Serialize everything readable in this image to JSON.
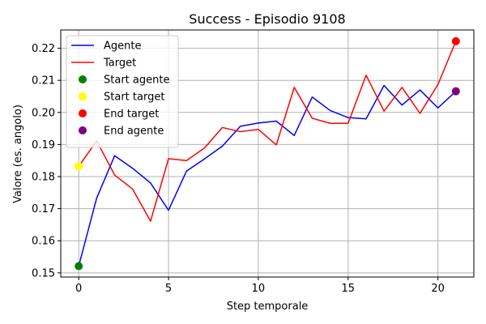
{
  "chart_data": {
    "type": "line",
    "title": "Success - Episodio 9108",
    "xlabel": "Step temporale",
    "ylabel": "Valore (es. angolo)",
    "xlim": [
      -1,
      22
    ],
    "ylim": [
      0.1487,
      0.2257
    ],
    "xticks": [
      0,
      5,
      10,
      15,
      20
    ],
    "yticks": [
      0.15,
      0.16,
      0.17,
      0.18,
      0.19,
      0.2,
      0.21,
      0.22
    ],
    "ytick_labels": [
      "0.15",
      "0.16",
      "0.17",
      "0.18",
      "0.19",
      "0.20",
      "0.21",
      "0.22"
    ],
    "grid": true,
    "legend_position": "top-left",
    "x": [
      0,
      1,
      2,
      3,
      4,
      5,
      6,
      7,
      8,
      9,
      10,
      11,
      12,
      13,
      14,
      15,
      16,
      17,
      18,
      19,
      20,
      21
    ],
    "series": [
      {
        "name": "Agente",
        "color": "#0000ff",
        "values": [
          0.1521,
          0.1733,
          0.1865,
          0.1826,
          0.178,
          0.1695,
          0.1817,
          0.1855,
          0.1895,
          0.1957,
          0.1967,
          0.1973,
          0.1928,
          0.2048,
          0.2006,
          0.1984,
          0.198,
          0.2084,
          0.2023,
          0.207,
          0.2014,
          0.2066
        ]
      },
      {
        "name": "Target",
        "color": "#ff0000",
        "values": [
          0.1832,
          0.1911,
          0.1805,
          0.1761,
          0.1661,
          0.1856,
          0.185,
          0.1889,
          0.1953,
          0.194,
          0.1947,
          0.1899,
          0.2078,
          0.1982,
          0.1966,
          0.1966,
          0.2116,
          0.2004,
          0.2078,
          0.1997,
          0.2087,
          0.2222
        ]
      }
    ],
    "markers": [
      {
        "name": "Start agente",
        "color": "#008000",
        "x": 0,
        "y": 0.1521
      },
      {
        "name": "Start target",
        "color": "#ffff00",
        "x": 0,
        "y": 0.1832
      },
      {
        "name": "End target",
        "color": "#ff0000",
        "x": 21,
        "y": 0.2222
      },
      {
        "name": "End agente",
        "color": "#800080",
        "x": 21,
        "y": 0.2066
      }
    ]
  }
}
